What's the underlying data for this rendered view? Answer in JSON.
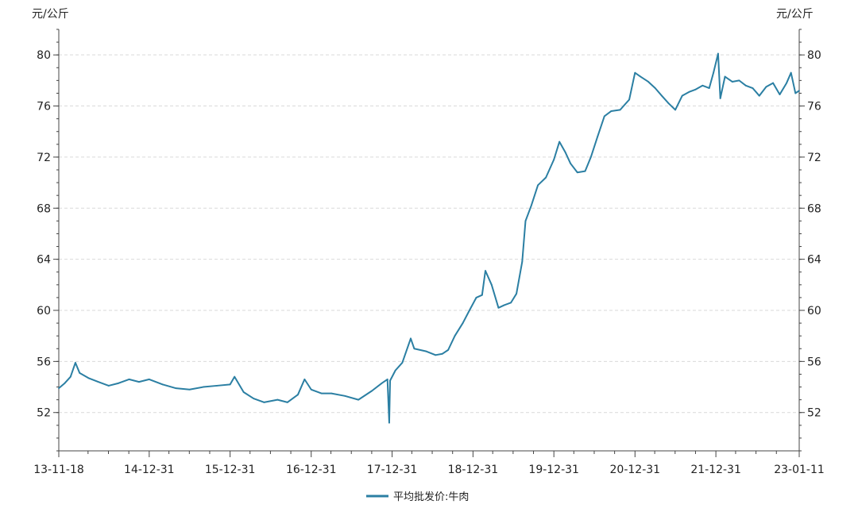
{
  "chart_data": {
    "type": "line",
    "ylabel_left": "元/公斤",
    "ylabel_right": "元/公斤",
    "ylim": [
      49,
      82
    ],
    "yticks": [
      52,
      56,
      60,
      64,
      68,
      72,
      76,
      80
    ],
    "xlim": [
      "2013-11-18",
      "2023-01-11"
    ],
    "xticks": [
      {
        "date": "2013-11-18",
        "label": "13-11-18"
      },
      {
        "date": "2014-12-31",
        "label": "14-12-31"
      },
      {
        "date": "2015-12-31",
        "label": "15-12-31"
      },
      {
        "date": "2016-12-31",
        "label": "16-12-31"
      },
      {
        "date": "2017-12-31",
        "label": "17-12-31"
      },
      {
        "date": "2018-12-31",
        "label": "18-12-31"
      },
      {
        "date": "2019-12-31",
        "label": "19-12-31"
      },
      {
        "date": "2020-12-31",
        "label": "20-12-31"
      },
      {
        "date": "2021-12-31",
        "label": "21-12-31"
      },
      {
        "date": "2023-01-11",
        "label": "23-01-11"
      }
    ],
    "grid": true,
    "legend_position": "bottom-center",
    "series": [
      {
        "name": "平均批发价:牛肉",
        "color": "#2b7fa3",
        "points": [
          [
            "2013-11-18",
            53.9
          ],
          [
            "2013-12-15",
            54.3
          ],
          [
            "2014-01-10",
            54.8
          ],
          [
            "2014-02-01",
            55.9
          ],
          [
            "2014-02-20",
            55.1
          ],
          [
            "2014-04-01",
            54.7
          ],
          [
            "2014-05-15",
            54.4
          ],
          [
            "2014-07-01",
            54.1
          ],
          [
            "2014-08-15",
            54.3
          ],
          [
            "2014-10-01",
            54.6
          ],
          [
            "2014-11-15",
            54.4
          ],
          [
            "2014-12-31",
            54.6
          ],
          [
            "2015-03-01",
            54.2
          ],
          [
            "2015-05-01",
            53.9
          ],
          [
            "2015-07-01",
            53.8
          ],
          [
            "2015-09-01",
            54.0
          ],
          [
            "2015-11-01",
            54.1
          ],
          [
            "2015-12-31",
            54.2
          ],
          [
            "2016-01-20",
            54.8
          ],
          [
            "2016-03-01",
            53.6
          ],
          [
            "2016-04-15",
            53.1
          ],
          [
            "2016-06-01",
            52.8
          ],
          [
            "2016-08-01",
            53.0
          ],
          [
            "2016-09-15",
            52.8
          ],
          [
            "2016-11-01",
            53.4
          ],
          [
            "2016-12-01",
            54.6
          ],
          [
            "2016-12-31",
            53.8
          ],
          [
            "2017-02-15",
            53.5
          ],
          [
            "2017-04-01",
            53.5
          ],
          [
            "2017-06-01",
            53.3
          ],
          [
            "2017-08-01",
            53.0
          ],
          [
            "2017-10-01",
            53.7
          ],
          [
            "2017-11-15",
            54.3
          ],
          [
            "2017-12-10",
            54.6
          ],
          [
            "2017-12-18",
            51.2
          ],
          [
            "2017-12-22",
            54.5
          ],
          [
            "2018-01-15",
            55.3
          ],
          [
            "2018-02-15",
            55.9
          ],
          [
            "2018-03-25",
            57.8
          ],
          [
            "2018-04-10",
            57.0
          ],
          [
            "2018-06-01",
            56.8
          ],
          [
            "2018-07-15",
            56.5
          ],
          [
            "2018-08-15",
            56.6
          ],
          [
            "2018-09-10",
            56.9
          ],
          [
            "2018-10-10",
            58.0
          ],
          [
            "2018-11-15",
            59.0
          ],
          [
            "2018-12-15",
            60.0
          ],
          [
            "2019-01-15",
            61.0
          ],
          [
            "2019-02-10",
            61.2
          ],
          [
            "2019-02-25",
            63.1
          ],
          [
            "2019-03-25",
            62.0
          ],
          [
            "2019-04-25",
            60.2
          ],
          [
            "2019-05-20",
            60.4
          ],
          [
            "2019-06-20",
            60.6
          ],
          [
            "2019-07-15",
            61.3
          ],
          [
            "2019-08-10",
            63.8
          ],
          [
            "2019-08-25",
            67.0
          ],
          [
            "2019-09-20",
            68.2
          ],
          [
            "2019-10-20",
            69.8
          ],
          [
            "2019-11-25",
            70.4
          ],
          [
            "2019-12-31",
            71.8
          ],
          [
            "2020-01-25",
            73.2
          ],
          [
            "2020-02-20",
            72.4
          ],
          [
            "2020-03-15",
            71.5
          ],
          [
            "2020-04-15",
            70.8
          ],
          [
            "2020-05-20",
            70.9
          ],
          [
            "2020-06-15",
            72.0
          ],
          [
            "2020-07-15",
            73.6
          ],
          [
            "2020-08-15",
            75.2
          ],
          [
            "2020-09-15",
            75.6
          ],
          [
            "2020-10-25",
            75.7
          ],
          [
            "2020-12-05",
            76.5
          ],
          [
            "2020-12-31",
            78.6
          ],
          [
            "2021-01-25",
            78.3
          ],
          [
            "2021-03-01",
            77.9
          ],
          [
            "2021-04-01",
            77.4
          ],
          [
            "2021-05-01",
            76.8
          ],
          [
            "2021-06-01",
            76.2
          ],
          [
            "2021-07-01",
            75.7
          ],
          [
            "2021-08-01",
            76.8
          ],
          [
            "2021-09-01",
            77.1
          ],
          [
            "2021-10-01",
            77.3
          ],
          [
            "2021-11-01",
            77.6
          ],
          [
            "2021-12-01",
            77.4
          ],
          [
            "2021-12-20",
            78.6
          ],
          [
            "2022-01-10",
            80.1
          ],
          [
            "2022-01-20",
            76.6
          ],
          [
            "2022-02-10",
            78.3
          ],
          [
            "2022-03-15",
            77.9
          ],
          [
            "2022-04-15",
            78.0
          ],
          [
            "2022-05-15",
            77.6
          ],
          [
            "2022-06-15",
            77.4
          ],
          [
            "2022-07-15",
            76.8
          ],
          [
            "2022-08-15",
            77.5
          ],
          [
            "2022-09-15",
            77.8
          ],
          [
            "2022-10-15",
            76.9
          ],
          [
            "2022-11-15",
            77.8
          ],
          [
            "2022-12-05",
            78.6
          ],
          [
            "2022-12-25",
            77.0
          ],
          [
            "2023-01-11",
            77.2
          ]
        ]
      }
    ]
  }
}
